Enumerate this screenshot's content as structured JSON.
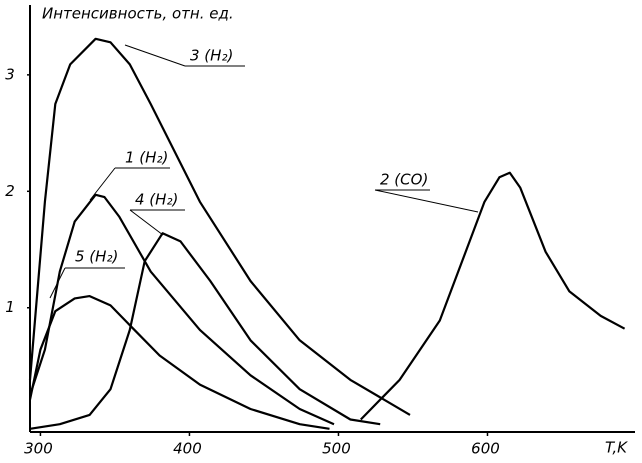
{
  "chart_data": {
    "type": "line",
    "y_label": "Интенсивность, отн. ед.",
    "x_label": "T,K",
    "xlim": [
      293,
      700
    ],
    "ylim": [
      -0.05,
      3.6
    ],
    "xticks": [
      300,
      400,
      500,
      600
    ],
    "yticks": [
      1,
      2,
      3
    ],
    "series": [
      {
        "name": "3 (H₂)",
        "color": "#000000",
        "x": [
          293,
          303,
          310,
          320,
          337,
          347,
          360,
          374,
          407,
          441,
          474,
          508,
          548
        ],
        "values": [
          0.38,
          1.91,
          2.75,
          3.09,
          3.31,
          3.28,
          3.09,
          2.75,
          1.91,
          1.23,
          0.72,
          0.38,
          0.08
        ]
      },
      {
        "name": "1 (H₂)",
        "color": "#000000",
        "x": [
          293,
          303,
          313,
          323,
          337,
          343,
          353,
          374,
          407,
          441,
          474,
          497
        ],
        "values": [
          0.25,
          0.64,
          1.31,
          1.74,
          1.97,
          1.95,
          1.78,
          1.31,
          0.81,
          0.42,
          0.13,
          0
        ]
      },
      {
        "name": "4 (H₂)",
        "color": "#000000",
        "x": [
          293,
          313,
          333,
          347,
          360,
          370,
          382,
          394,
          414,
          441,
          474,
          508,
          528
        ],
        "values": [
          -0.04,
          0,
          0.08,
          0.3,
          0.81,
          1.4,
          1.64,
          1.57,
          1.23,
          0.72,
          0.3,
          0.04,
          0
        ]
      },
      {
        "name": "5 (H₂)",
        "color": "#000000",
        "x": [
          293,
          300,
          310,
          323,
          333,
          347,
          360,
          380,
          407,
          441,
          474,
          494
        ],
        "values": [
          0.21,
          0.64,
          0.97,
          1.08,
          1.1,
          1.02,
          0.85,
          0.59,
          0.34,
          0.13,
          0,
          -0.04
        ]
      },
      {
        "name": "2 (CO)",
        "color": "#000000",
        "x": [
          515,
          541,
          568,
          588,
          598,
          608,
          615,
          622,
          639,
          655,
          676,
          692
        ],
        "values": [
          0.04,
          0.38,
          0.89,
          1.57,
          1.91,
          2.12,
          2.16,
          2.03,
          1.48,
          1.14,
          0.93,
          0.82
        ]
      }
    ]
  }
}
